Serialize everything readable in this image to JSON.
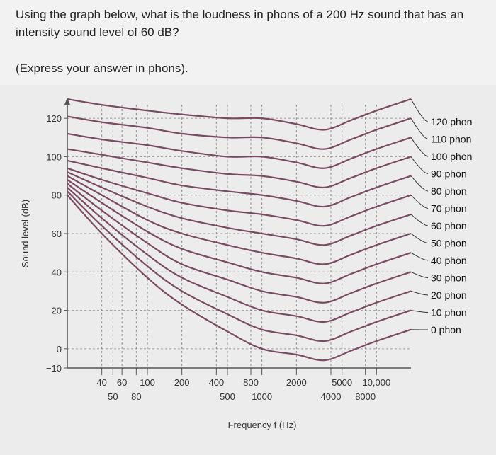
{
  "question": {
    "text": "Using the graph below, what is the loudness in phons of a 200 Hz sound that has an intensity sound level of 60 dB?",
    "hint": "(Express your answer in phons)."
  },
  "chart_data": {
    "type": "line",
    "title": "",
    "xlabel": "Frequency f (Hz)",
    "ylabel": "Sound level (dB)",
    "xscale": "log",
    "xlim": [
      20,
      20000
    ],
    "ylim": [
      -10,
      130
    ],
    "x_ticks": [
      {
        "value": 40,
        "label": "40",
        "row": 1
      },
      {
        "value": 50,
        "label": "50",
        "row": 2
      },
      {
        "value": 60,
        "label": "60",
        "row": 1
      },
      {
        "value": 80,
        "label": "80",
        "row": 2
      },
      {
        "value": 100,
        "label": "100",
        "row": 1
      },
      {
        "value": 200,
        "label": "200",
        "row": 1
      },
      {
        "value": 400,
        "label": "400",
        "row": 1
      },
      {
        "value": 500,
        "label": "500",
        "row": 2
      },
      {
        "value": 800,
        "label": "800",
        "row": 1
      },
      {
        "value": 1000,
        "label": "1000",
        "row": 2
      },
      {
        "value": 2000,
        "label": "2000",
        "row": 1
      },
      {
        "value": 4000,
        "label": "4000",
        "row": 2
      },
      {
        "value": 5000,
        "label": "5000",
        "row": 1
      },
      {
        "value": 8000,
        "label": "8000",
        "row": 2
      },
      {
        "value": 10000,
        "label": "10,000",
        "row": 1
      }
    ],
    "y_ticks": [
      {
        "value": 120,
        "label": "120"
      },
      {
        "value": 100,
        "label": "100"
      },
      {
        "value": 80,
        "label": "80"
      },
      {
        "value": 60,
        "label": "60"
      },
      {
        "value": 40,
        "label": "40"
      },
      {
        "value": 20,
        "label": "20"
      },
      {
        "value": 0,
        "label": "0"
      },
      {
        "value": -10,
        "label": "−10"
      }
    ],
    "grid": true,
    "x": [
      20,
      40,
      100,
      200,
      500,
      1000,
      2000,
      3500,
      6000,
      10000,
      20000
    ],
    "series": [
      {
        "name": "120 phon",
        "values": [
          130,
          127,
          124,
          122,
          120,
          120,
          117,
          114,
          119,
          124,
          130
        ]
      },
      {
        "name": "110 phon",
        "values": [
          121,
          118,
          115,
          112,
          110,
          110,
          107,
          104,
          109,
          114,
          120
        ]
      },
      {
        "name": "100 phon",
        "values": [
          112,
          109,
          106,
          103,
          100,
          100,
          97,
          94,
          99,
          104,
          110
        ]
      },
      {
        "name": "90 phon",
        "values": [
          104,
          101,
          97,
          94,
          91,
          90,
          87,
          84,
          89,
          94,
          100
        ]
      },
      {
        "name": "80 phon",
        "values": [
          98,
          94,
          89,
          85,
          82,
          80,
          77,
          74,
          79,
          84,
          90
        ]
      },
      {
        "name": "70 phon",
        "values": [
          94,
          88,
          81,
          76,
          72,
          70,
          67,
          64,
          69,
          74,
          80
        ]
      },
      {
        "name": "60 phon",
        "values": [
          92,
          84,
          74,
          68,
          63,
          60,
          57,
          54,
          59,
          64,
          70
        ]
      },
      {
        "name": "50 phon",
        "values": [
          90,
          80,
          67,
          60,
          54,
          50,
          47,
          44,
          49,
          54,
          60
        ]
      },
      {
        "name": "40 phon",
        "values": [
          88,
          76,
          61,
          52,
          45,
          40,
          37,
          34,
          39,
          44,
          50
        ]
      },
      {
        "name": "30 phon",
        "values": [
          86,
          72,
          55,
          44,
          36,
          30,
          27,
          24,
          29,
          34,
          40
        ]
      },
      {
        "name": "20 phon",
        "values": [
          84,
          68,
          49,
          37,
          27,
          20,
          17,
          14,
          19,
          24,
          30
        ]
      },
      {
        "name": "10 phon",
        "values": [
          82,
          64,
          43,
          30,
          18,
          10,
          7,
          4,
          9,
          14,
          20
        ]
      },
      {
        "name": "0 phon",
        "values": [
          80,
          60,
          37,
          23,
          9,
          0,
          -3,
          -6,
          -1,
          4,
          10
        ]
      }
    ],
    "line_color": "#7a4a62",
    "grid_color": "#666666",
    "legend_placement": "right"
  }
}
